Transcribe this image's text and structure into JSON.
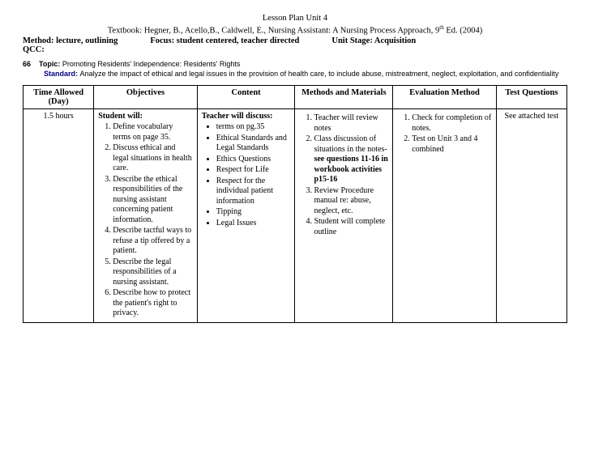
{
  "header": {
    "title": "Lesson Plan Unit 4",
    "textbook_label": "Textbook: ",
    "textbook": "Hegner, B., Acello,B., Caldwell, E., Nursing Assistant: A Nursing Process Approach, 9",
    "textbook_suffix": " Ed. (2004)",
    "th": "th"
  },
  "meta": {
    "method_label": "Method",
    "method_value": ": lecture, outlining",
    "focus_label": "Focus:",
    "focus_value": " student centered, teacher directed",
    "stage_label": "Unit Stage:",
    "stage_value": " Acquisition",
    "qcc_label": "QCC:"
  },
  "topic": {
    "num": "66",
    "topic_label": "Topic: ",
    "topic_text": "Promoting Residents' Independence: Residents' Rights",
    "standard_label": "Standard: ",
    "standard_text": "Analyze the impact of ethical and legal issues in the provision of health care, to include abuse, mistreatment, neglect, exploitation, and confidentiality"
  },
  "table": {
    "headers": [
      "Time Allowed (Day)",
      "Objectives",
      "Content",
      "Methods and Materials",
      "Evaluation Method",
      "Test Questions"
    ],
    "time": "1.5 hours",
    "objectives_intro": "Student will",
    "objectives": [
      "Define vocabulary terms on page 35.",
      "Discuss ethical and legal situations in health care.",
      "Describe the ethical responsibilities of the nursing assistant concerning patient information.",
      "Describe tactful ways to refuse a tip offered by a patient.",
      "Describe the legal responsibilities of a nursing assistant.",
      "Describe how to protect the patient's right to privacy."
    ],
    "content_intro": "Teacher will discuss:",
    "content": [
      "terms on pg.35",
      "Ethical Standards and Legal Standards",
      "Ethics Questions",
      "Respect for Life",
      "Respect for the individual patient information",
      "Tipping",
      "Legal Issues"
    ],
    "methods": [
      {
        "text": "Teacher will review notes"
      },
      {
        "prefix": "Class discussion of situations in the notes- ",
        "bold": "see questions 11-16 in workbook activities p15-16"
      },
      {
        "text": "Review Procedure manual  re: abuse, neglect, etc."
      },
      {
        "text": "Student will complete outline"
      }
    ],
    "evaluation": [
      "Check for completion of notes.",
      "Test on Unit 3 and 4 combined"
    ],
    "test_questions": "See attached test"
  }
}
